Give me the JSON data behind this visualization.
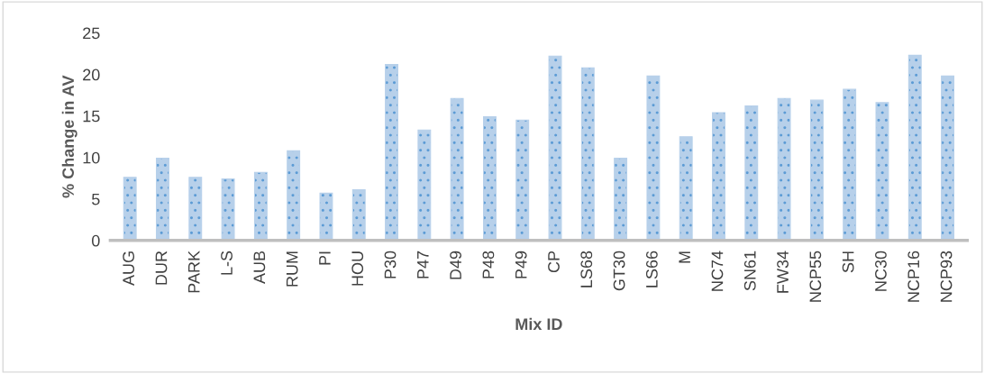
{
  "chart_data": {
    "type": "bar",
    "xlabel": "Mix ID",
    "ylabel": "% Change in AV",
    "categories": [
      "AUG",
      "DUR",
      "PARK",
      "L-S",
      "AUB",
      "RUM",
      "PI",
      "HOU",
      "P30",
      "P47",
      "D49",
      "P48",
      "P49",
      "CP",
      "LS68",
      "GT30",
      "LS66",
      "M",
      "NC74",
      "SN61",
      "FW34",
      "NCP55",
      "SH",
      "NC30",
      "NCP16",
      "NCP93"
    ],
    "values": [
      7.6,
      9.9,
      7.6,
      7.4,
      8.2,
      10.8,
      5.7,
      6.1,
      21.2,
      13.3,
      17.1,
      14.9,
      14.5,
      22.2,
      20.8,
      9.9,
      19.8,
      12.5,
      15.4,
      16.2,
      17.1,
      16.9,
      18.2,
      16.6,
      22.3,
      19.8
    ],
    "color": "#b7d0ea",
    "ylim": [
      0,
      25
    ],
    "yticks": [
      0,
      5,
      10,
      15,
      20,
      25
    ],
    "grid": false,
    "legend": false
  }
}
